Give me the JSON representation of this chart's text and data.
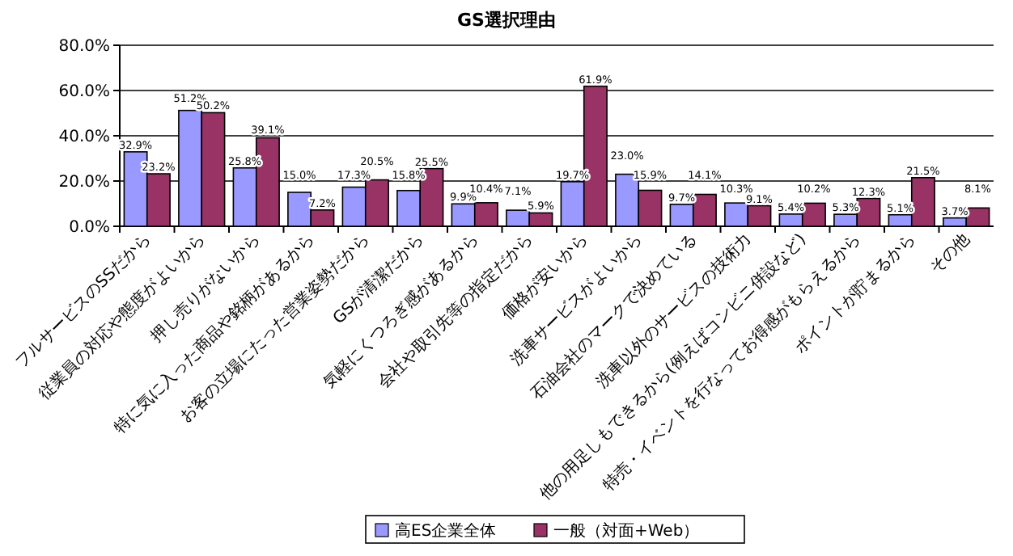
{
  "chart_data": {
    "type": "bar",
    "title": "GS選択理由",
    "categories": [
      "フルサービスのSSだから",
      "従業員の対応や態度がよいから",
      "押し売りがないから",
      "特に気に入った商品や銘柄があるから",
      "お客の立場にたった営業姿勢だから",
      "GSが清潔だから",
      "気軽にくつろぎ感があるから",
      "会社や取引先等の指定だから",
      "価格が安いから",
      "洗車サービスがよいから",
      "石油会社のマークで決めている",
      "洗車以外のサービスの技術力",
      "他の用足しもできるから(例えばコンビニ併設など)",
      "特売・イベントを行なってお得感がもらえるから",
      "ポイントが貯まるから",
      "その他"
    ],
    "series": [
      {
        "name": "高ES企業全体",
        "color": "#9999ff",
        "values": [
          32.9,
          51.2,
          25.8,
          15.0,
          17.3,
          15.8,
          9.9,
          7.1,
          19.7,
          23.0,
          9.7,
          10.3,
          5.4,
          5.3,
          5.1,
          3.7
        ],
        "value_labels": [
          "32.9%",
          "51.2%",
          "25.8%",
          "15.0%",
          "17.3%",
          "15.8%",
          "9.9%",
          "7.1%",
          "19.7%",
          "23.0%",
          "9.7%",
          "10.3%",
          "5.4%",
          "5.3%",
          "5.1%",
          "3.7%"
        ]
      },
      {
        "name": "一般（対面+Web）",
        "color": "#993366",
        "values": [
          23.2,
          50.2,
          39.1,
          7.2,
          20.5,
          25.5,
          10.4,
          5.9,
          61.9,
          15.9,
          14.1,
          9.1,
          10.2,
          12.3,
          21.5,
          8.1
        ],
        "value_labels": [
          "23.2%",
          "50.2%",
          "39.1%",
          "7.2%",
          "20.5%",
          "25.5%",
          "10.4%",
          "5.9%",
          "61.9%",
          "15.9%",
          "14.1%",
          "9.1%",
          "10.2%",
          "12.3%",
          "21.5%",
          "8.1%"
        ]
      }
    ],
    "ylim": [
      0,
      80
    ],
    "yticks": [
      {
        "value": 0,
        "label": "0.0%"
      },
      {
        "value": 20,
        "label": "20.0%"
      },
      {
        "value": 40,
        "label": "40.0%"
      },
      {
        "value": 60,
        "label": "60.0%"
      },
      {
        "value": 80,
        "label": "80.0%"
      }
    ],
    "grid": "y",
    "legend": "bottom"
  }
}
